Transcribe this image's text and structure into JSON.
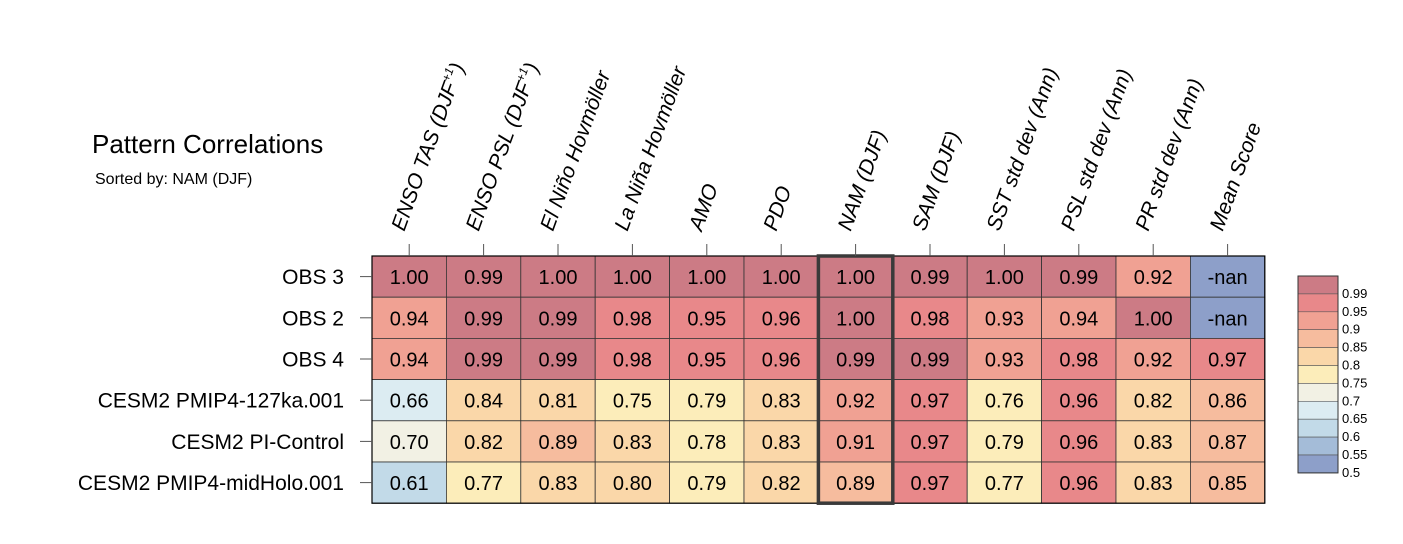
{
  "chart_data": {
    "type": "heatmap",
    "title": "Pattern Correlations",
    "subtitle": "Sorted by: NAM (DJF)",
    "columns": [
      {
        "label": "ENSO TAS (DJF",
        "sup": "+1",
        "tail": ")"
      },
      {
        "label": "ENSO PSL (DJF",
        "sup": "+1",
        "tail": ")"
      },
      {
        "label": "El Niño Hovmöller"
      },
      {
        "label": "La Niña Hovmöller"
      },
      {
        "label": "AMO"
      },
      {
        "label": "PDO"
      },
      {
        "label": "NAM (DJF)"
      },
      {
        "label": "SAM (DJF)"
      },
      {
        "label": "SST std dev (Ann)"
      },
      {
        "label": "PSL std dev (Ann)"
      },
      {
        "label": "PR std dev (Ann)"
      },
      {
        "label": "Mean Score"
      }
    ],
    "rows": [
      "OBS 3",
      "OBS 2",
      "OBS 4",
      "CESM2 PMIP4-127ka.001",
      "CESM2 PI-Control",
      "CESM2 PMIP4-midHolo.001"
    ],
    "values": [
      [
        "1.00",
        "0.99",
        "1.00",
        "1.00",
        "1.00",
        "1.00",
        "1.00",
        "0.99",
        "1.00",
        "0.99",
        "0.92",
        "-nan"
      ],
      [
        "0.94",
        "0.99",
        "0.99",
        "0.98",
        "0.95",
        "0.96",
        "1.00",
        "0.98",
        "0.93",
        "0.94",
        "1.00",
        "-nan"
      ],
      [
        "0.94",
        "0.99",
        "0.99",
        "0.98",
        "0.95",
        "0.96",
        "0.99",
        "0.99",
        "0.93",
        "0.98",
        "0.92",
        "0.97"
      ],
      [
        "0.66",
        "0.84",
        "0.81",
        "0.75",
        "0.79",
        "0.83",
        "0.92",
        "0.97",
        "0.76",
        "0.96",
        "0.82",
        "0.86"
      ],
      [
        "0.70",
        "0.82",
        "0.89",
        "0.83",
        "0.78",
        "0.83",
        "0.91",
        "0.97",
        "0.79",
        "0.96",
        "0.83",
        "0.87"
      ],
      [
        "0.61",
        "0.77",
        "0.83",
        "0.80",
        "0.79",
        "0.82",
        "0.89",
        "0.97",
        "0.77",
        "0.96",
        "0.83",
        "0.85"
      ]
    ],
    "highlighted_column": "NAM (DJF)",
    "colorbar": {
      "labels": [
        "0.99",
        "0.95",
        "0.9",
        "0.85",
        "0.8",
        "0.75",
        "0.7",
        "0.65",
        "0.6",
        "0.55",
        "0.5"
      ],
      "colors": [
        "#cc7b85",
        "#e8888a",
        "#f0a193",
        "#f6bc9e",
        "#fad7a9",
        "#fcedba",
        "#f2f1e4",
        "#dcecf2",
        "#c2dae8",
        "#a4bcd8",
        "#8d9fc9"
      ],
      "nan_color": "#8d9fc9"
    }
  }
}
